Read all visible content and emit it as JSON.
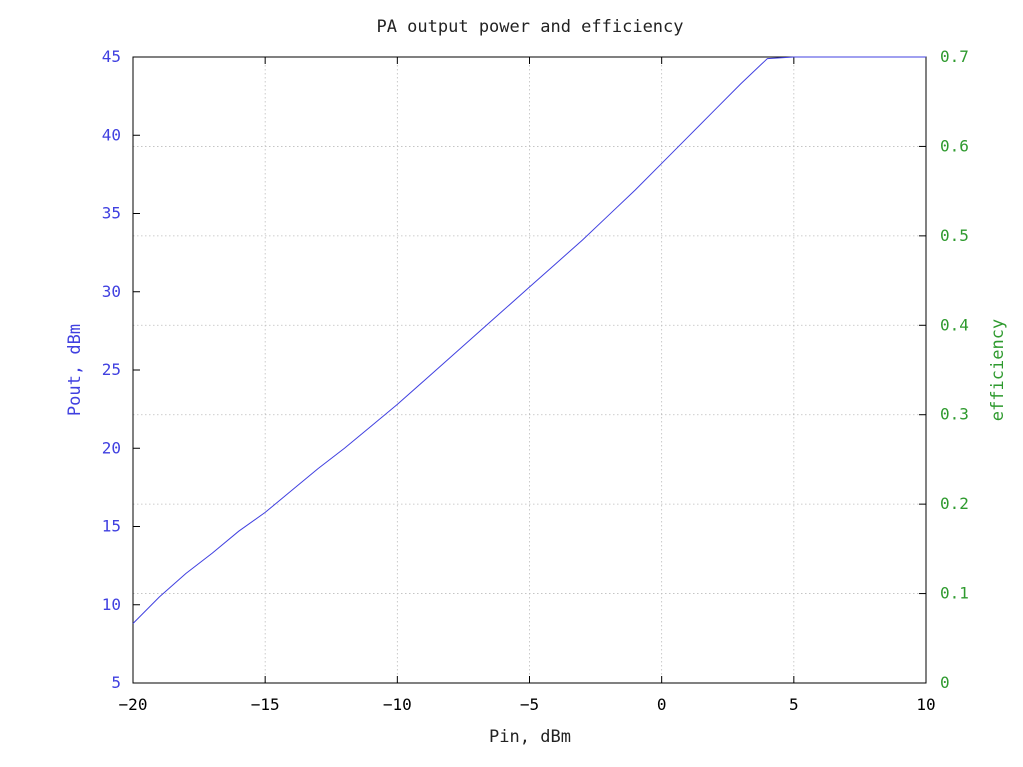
{
  "chart_data": {
    "type": "line",
    "title": "PA output power and efficiency",
    "xlabel": "Pin, dBm",
    "ylabel": "Pout, dBm",
    "y2label": "efficiency",
    "xlim": [
      -20,
      10
    ],
    "ylim": [
      5,
      45
    ],
    "y2lim": [
      0,
      0.7
    ],
    "xticks": [
      -20,
      -15,
      -10,
      -5,
      0,
      5,
      10
    ],
    "yticks": [
      5,
      10,
      15,
      20,
      25,
      30,
      35,
      40,
      45
    ],
    "y2ticks": [
      0,
      0.1,
      0.2,
      0.3,
      0.4,
      0.5,
      0.6,
      0.7
    ],
    "xtick_labels": [
      "−20",
      "−15",
      "−10",
      "−5",
      "0",
      "5",
      "10"
    ],
    "ytick_labels": [
      "5",
      "10",
      "15",
      "20",
      "25",
      "30",
      "35",
      "40",
      "45"
    ],
    "y2tick_labels": [
      "0",
      "0.1",
      "0.2",
      "0.3",
      "0.4",
      "0.5",
      "0.6",
      "0.7"
    ],
    "grid": true,
    "colors": {
      "left_axis": "#4040e0",
      "right_axis": "#2e9a2e",
      "frame": "#000000"
    },
    "x": [
      -20,
      -19,
      -18,
      -17,
      -16,
      -15,
      -14,
      -13,
      -12,
      -11,
      -10,
      -9,
      -8,
      -7,
      -6,
      -5,
      -4,
      -3,
      -2,
      -1,
      0,
      1,
      2,
      3,
      4,
      5,
      6,
      7,
      8,
      9,
      10
    ],
    "series": [
      {
        "axis": "left",
        "color": "#4040e0",
        "values": [
          8.8,
          10.5,
          12.0,
          13.3,
          14.7,
          15.9,
          17.3,
          18.7,
          20.0,
          21.4,
          22.8,
          24.3,
          25.8,
          27.3,
          28.8,
          30.3,
          31.8,
          33.3,
          34.9,
          36.5,
          38.2,
          39.9,
          41.6,
          43.3,
          44.9,
          45.0,
          45.0,
          45.0,
          45.0,
          45.0,
          45.0
        ]
      }
    ]
  }
}
